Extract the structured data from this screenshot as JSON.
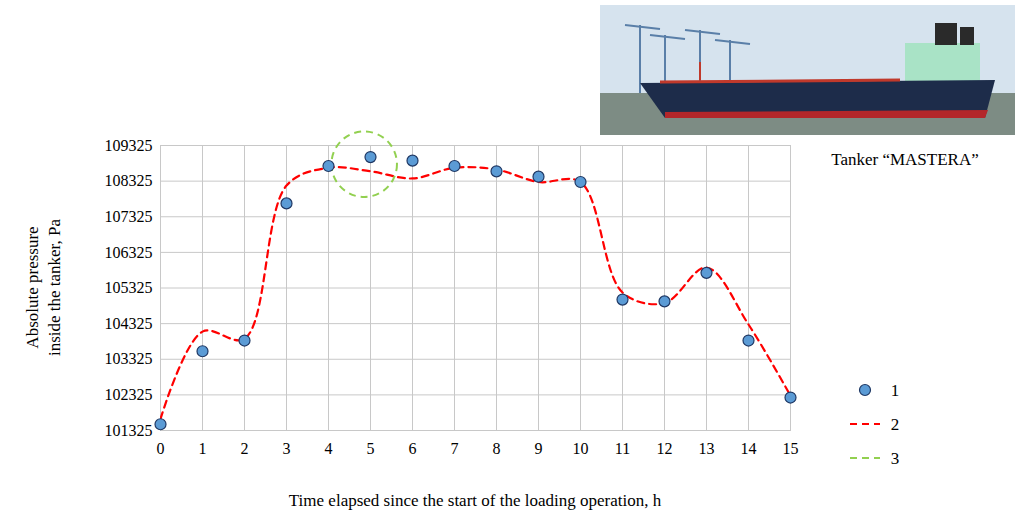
{
  "chart_data": {
    "type": "line",
    "x_label": "Time elapsed since the start of the loading operation, h",
    "y_label": "Absolute pressure inside the tanker, Pa",
    "photo_caption": "Tanker “MASTERA”",
    "x": [
      0,
      1,
      2,
      3,
      4,
      5,
      6,
      7,
      8,
      9,
      10,
      11,
      12,
      13,
      14,
      15
    ],
    "xlim": [
      0,
      15
    ],
    "xticks": [
      0,
      1,
      2,
      3,
      4,
      5,
      6,
      7,
      8,
      9,
      10,
      11,
      12,
      13,
      14,
      15
    ],
    "ylim": [
      101325,
      109325
    ],
    "yticks": [
      101325,
      102325,
      103325,
      104325,
      105325,
      106325,
      107325,
      108325,
      109325
    ],
    "grid": true,
    "legend": "right",
    "series": [
      {
        "name": "1",
        "type": "scatter",
        "marker": "circle",
        "color": "#5b9bd5",
        "values": [
          101500,
          103550,
          103850,
          107700,
          108750,
          109000,
          108900,
          108750,
          108600,
          108450,
          108300,
          105000,
          104950,
          105750,
          103850,
          102250
        ]
      },
      {
        "name": "2",
        "type": "line",
        "line_style": "dashed",
        "color": "#ff0000",
        "values": [
          101650,
          104100,
          103900,
          108200,
          108700,
          108600,
          108400,
          108700,
          108650,
          108300,
          108300,
          105200,
          104900,
          105900,
          104300,
          102300
        ]
      },
      {
        "name": "3",
        "type": "circle",
        "line_style": "dashed",
        "color": "#92d050",
        "x": [
          4.85
        ],
        "values": [
          108800
        ],
        "radius": [
          0.78
        ]
      }
    ]
  }
}
